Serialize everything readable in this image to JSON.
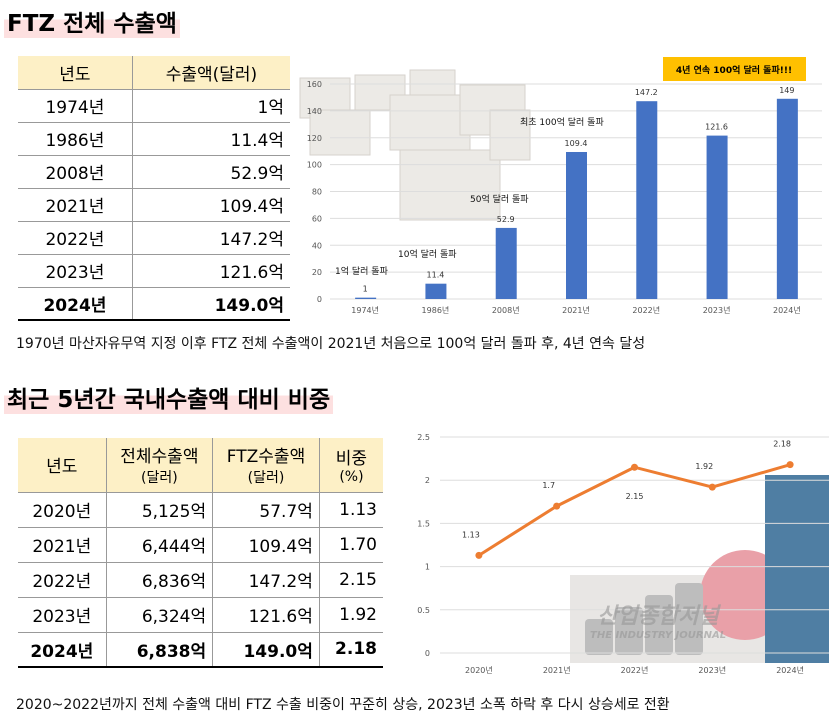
{
  "section1": {
    "title": "FTZ 전체 수출액",
    "table": {
      "headers": [
        "년도",
        "수출액(달러)"
      ],
      "rows": [
        [
          "1974년",
          "1억"
        ],
        [
          "1986년",
          "11.4억"
        ],
        [
          "2008년",
          "52.9억"
        ],
        [
          "2021년",
          "109.4억"
        ],
        [
          "2022년",
          "147.2억"
        ],
        [
          "2023년",
          "121.6억"
        ],
        [
          "2024년",
          "149.0억"
        ]
      ]
    },
    "caption": "1970년 마산자유무역 지정 이후 FTZ 전체 수출액이 2021년 처음으로 100억 달러 돌파 후, 4년 연속 달성"
  },
  "section2": {
    "title": "최근 5년간 국내수출액 대비 비중",
    "table": {
      "headers": [
        [
          "년도",
          ""
        ],
        [
          "전체수출액",
          "(달러)"
        ],
        [
          "FTZ수출액",
          "(달러)"
        ],
        [
          "비중",
          "(%)"
        ]
      ],
      "rows": [
        [
          "2020년",
          "5,125억",
          "57.7억",
          "1.13"
        ],
        [
          "2021년",
          "6,444억",
          "109.4억",
          "1.70"
        ],
        [
          "2022년",
          "6,836억",
          "147.2억",
          "2.15"
        ],
        [
          "2023년",
          "6,324억",
          "121.6억",
          "1.92"
        ],
        [
          "2024년",
          "6,838억",
          "149.0억",
          "2.18"
        ]
      ]
    },
    "caption": "2020~2022년까지 전체 수출액 대비 FTZ 수출 비중이 꾸준히 상승, 2023년 소폭 하락 후 다시 상승세로 전환"
  },
  "watermark": {
    "name": "산업종합저널",
    "sub": "THE INDUSTRY JOURNAL"
  },
  "chart_data": [
    {
      "type": "bar",
      "categories": [
        "1974년",
        "1986년",
        "2008년",
        "2021년",
        "2022년",
        "2023년",
        "2024년"
      ],
      "values": [
        1,
        11.4,
        52.9,
        109.4,
        147.2,
        121.6,
        149
      ],
      "ylim": [
        0,
        160
      ],
      "yticks": [
        0,
        20,
        40,
        60,
        80,
        100,
        120,
        140,
        160
      ],
      "grid": true,
      "color": "#4472c4",
      "annotations": [
        "1억 달러 돌파",
        "10억 달러 돌파",
        "50억 달러 돌파",
        "최초 100억 달러 돌파"
      ],
      "banner": "4년 연속 100억 달러 돌파!!!",
      "banner_color": "#ffc000"
    },
    {
      "type": "line",
      "categories": [
        "2020년",
        "2021년",
        "2022년",
        "2023년",
        "2024년"
      ],
      "values": [
        1.13,
        1.7,
        2.15,
        1.92,
        2.18
      ],
      "ylim": [
        0,
        2.5
      ],
      "yticks": [
        0,
        0.5,
        1,
        1.5,
        2,
        2.5
      ],
      "grid": true,
      "color": "#ed7d31"
    }
  ]
}
